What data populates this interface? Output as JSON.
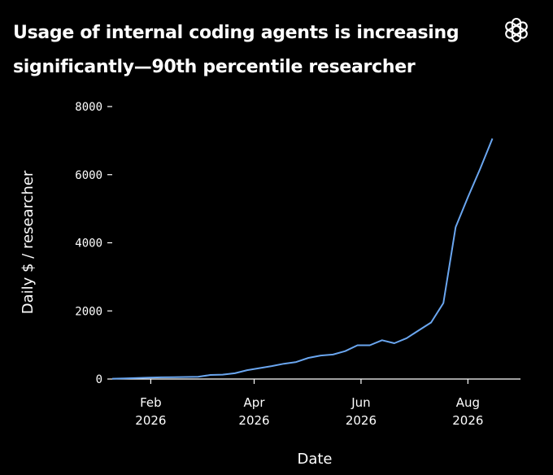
{
  "header": {
    "title": "Usage of internal coding agents is increasing significantly—90th percentile researcher",
    "logo_icon": "openai-logo-icon"
  },
  "chart_data": {
    "type": "line",
    "title": "Usage of internal coding agents is increasing significantly—90th percentile researcher",
    "xlabel": "Date",
    "ylabel": "Daily $ / researcher",
    "xlim": [
      "2026-01-10",
      "2026-08-31"
    ],
    "ylim": [
      0,
      8000
    ],
    "yticks": [
      0,
      2000,
      4000,
      6000,
      8000
    ],
    "xticks": [
      {
        "date": "2026-02-01",
        "line1": "Feb",
        "line2": "2026"
      },
      {
        "date": "2026-04-01",
        "line1": "Apr",
        "line2": "2026"
      },
      {
        "date": "2026-06-01",
        "line1": "Jun",
        "line2": "2026"
      },
      {
        "date": "2026-08-01",
        "line1": "Aug",
        "line2": "2026"
      }
    ],
    "grid": false,
    "series": [
      {
        "color": "#6aa6f0",
        "x": [
          "2026-01-10",
          "2026-01-17",
          "2026-01-24",
          "2026-01-31",
          "2026-02-07",
          "2026-02-14",
          "2026-02-21",
          "2026-02-28",
          "2026-03-07",
          "2026-03-14",
          "2026-03-21",
          "2026-03-28",
          "2026-04-04",
          "2026-04-11",
          "2026-04-18",
          "2026-04-25",
          "2026-05-02",
          "2026-05-09",
          "2026-05-16",
          "2026-05-23",
          "2026-05-30",
          "2026-06-06",
          "2026-06-13",
          "2026-06-20",
          "2026-06-27",
          "2026-07-04",
          "2026-07-11",
          "2026-07-18",
          "2026-07-25",
          "2026-08-01",
          "2026-08-08",
          "2026-08-15"
        ],
        "values": [
          10,
          20,
          30,
          40,
          50,
          55,
          60,
          65,
          120,
          130,
          170,
          260,
          320,
          380,
          450,
          500,
          620,
          690,
          720,
          820,
          990,
          990,
          1140,
          1050,
          1200,
          1430,
          1660,
          2230,
          4460,
          5340,
          6170,
          7060
        ]
      }
    ]
  }
}
